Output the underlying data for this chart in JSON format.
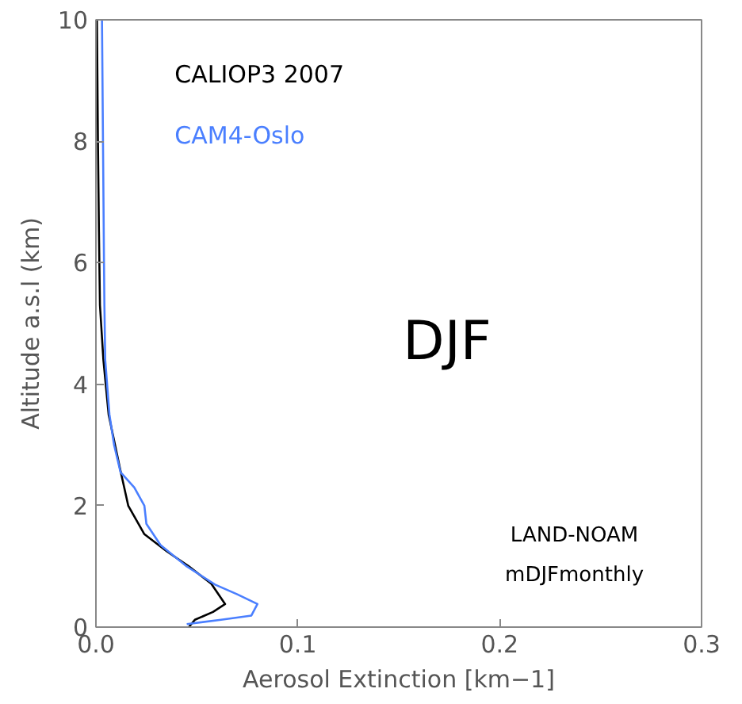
{
  "chart_data": {
    "type": "line",
    "xlabel": "Aerosol Extinction [km−1]",
    "ylabel": "Altitude a.s.l (km)",
    "xlim": [
      0,
      0.3
    ],
    "ylim": [
      0,
      10
    ],
    "xticks": [
      {
        "value": 0,
        "label": "0.0"
      },
      0.1,
      0.2,
      0.3
    ],
    "yticks": [
      0,
      2,
      4,
      6,
      8,
      10
    ],
    "grid": false,
    "legend": false,
    "series": [
      {
        "name": "CALIOP3 2007",
        "color": "#000000",
        "x": [
          0.046,
          0.049,
          0.058,
          0.064,
          0.057,
          0.046,
          0.035,
          0.024,
          0.016,
          0.012,
          0.0063,
          0.0037,
          0.002,
          0.0015,
          0.001,
          0.0005
        ],
        "values": [
          0.0,
          0.12,
          0.25,
          0.38,
          0.72,
          1.0,
          1.25,
          1.53,
          2.0,
          2.6,
          3.5,
          4.4,
          5.3,
          6.5,
          8.0,
          10.0
        ]
      },
      {
        "name": "CAM4-Oslo",
        "color": "#4a7fff",
        "x": [
          0.045,
          0.062,
          0.077,
          0.08,
          0.07,
          0.059,
          0.045,
          0.032,
          0.025,
          0.024,
          0.019,
          0.0122,
          0.009,
          0.0067,
          0.0046,
          0.0042,
          0.004,
          0.0035,
          0.003
        ],
        "values": [
          0.05,
          0.12,
          0.19,
          0.38,
          0.54,
          0.7,
          1.0,
          1.35,
          1.7,
          2.0,
          2.3,
          2.55,
          3.0,
          3.5,
          4.4,
          5.3,
          6.0,
          8.0,
          10.0
        ]
      }
    ],
    "annotations": [
      "DJF",
      "LAND-NOAM",
      "mDJFmonthly"
    ]
  }
}
